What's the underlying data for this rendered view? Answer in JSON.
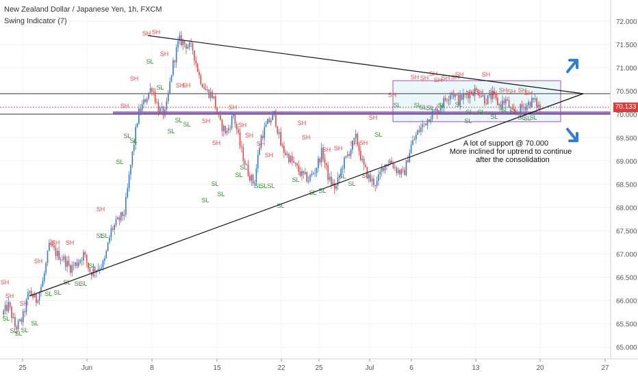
{
  "legend": {
    "title": "New Zealand Dollar / Japanese Yen, 1h, FXCM",
    "indicator": "Swing Indicator (7)"
  },
  "current_price": "70.133",
  "colors": {
    "up": "#3a7cc9",
    "down": "#e04a4a",
    "sh": "#e04a4a",
    "sl": "#2e8b2e",
    "range_box": "#ab47bc",
    "range_fill": "#d8f3f7",
    "support_band": "#9c4fd6",
    "arrow": "#2c7fd6"
  },
  "chart_data": {
    "type": "candlestick",
    "symbol": "NZDJPY",
    "timeframe": "1h",
    "ylim": [
      64.85,
      72.25
    ],
    "y_ticks": [
      "72.000",
      "71.500",
      "71.000",
      "70.500",
      "70.000",
      "69.500",
      "69.000",
      "68.500",
      "68.000",
      "67.500",
      "67.000",
      "66.500",
      "66.000",
      "65.500",
      "65.000"
    ],
    "x_ticks": [
      "25",
      "Jun",
      "8",
      "15",
      "22",
      "25",
      "Jul",
      "6",
      "13",
      "20",
      "27"
    ],
    "series_outline": [
      [
        65.7,
        65.9,
        65.4
      ],
      [
        65.6,
        66.2,
        66.0
      ],
      [
        66.4,
        67.2,
        67.0
      ],
      [
        66.9,
        66.7,
        66.8
      ],
      [
        67.0,
        66.6,
        66.7
      ],
      [
        66.8,
        67.5,
        67.7
      ],
      [
        67.9,
        69.0,
        70.0
      ],
      [
        70.3,
        70.6,
        70.1
      ],
      [
        70.0,
        71.0,
        71.6
      ],
      [
        71.5,
        71.4,
        70.8
      ],
      [
        70.5,
        70.4,
        69.8
      ],
      [
        69.6,
        70.0,
        69.3
      ],
      [
        68.8,
        68.5,
        69.5
      ],
      [
        69.8,
        70.0,
        69.3
      ],
      [
        69.1,
        68.9,
        68.7
      ],
      [
        68.6,
        68.8,
        69.2
      ],
      [
        68.6,
        68.4,
        68.9
      ],
      [
        69.2,
        69.5,
        68.9
      ],
      [
        68.6,
        68.5,
        68.9
      ],
      [
        69.0,
        68.8,
        68.7
      ],
      [
        69.3,
        69.6,
        69.8
      ],
      [
        70.0,
        70.1,
        70.3
      ],
      [
        70.5,
        70.3,
        70.4
      ],
      [
        70.5,
        70.5,
        70.3
      ],
      [
        70.4,
        70.2,
        70.3
      ],
      [
        70.0,
        70.1,
        70.2
      ],
      [
        70.3,
        70.13
      ]
    ],
    "swing_labels": [
      "SH",
      "SL"
    ],
    "horizontal_levels": [
      70.43,
      70.0
    ],
    "annotation": [
      "A lot of support @ 70.000",
      "More inclined for uptrend to continue",
      "after the consolidation"
    ]
  }
}
